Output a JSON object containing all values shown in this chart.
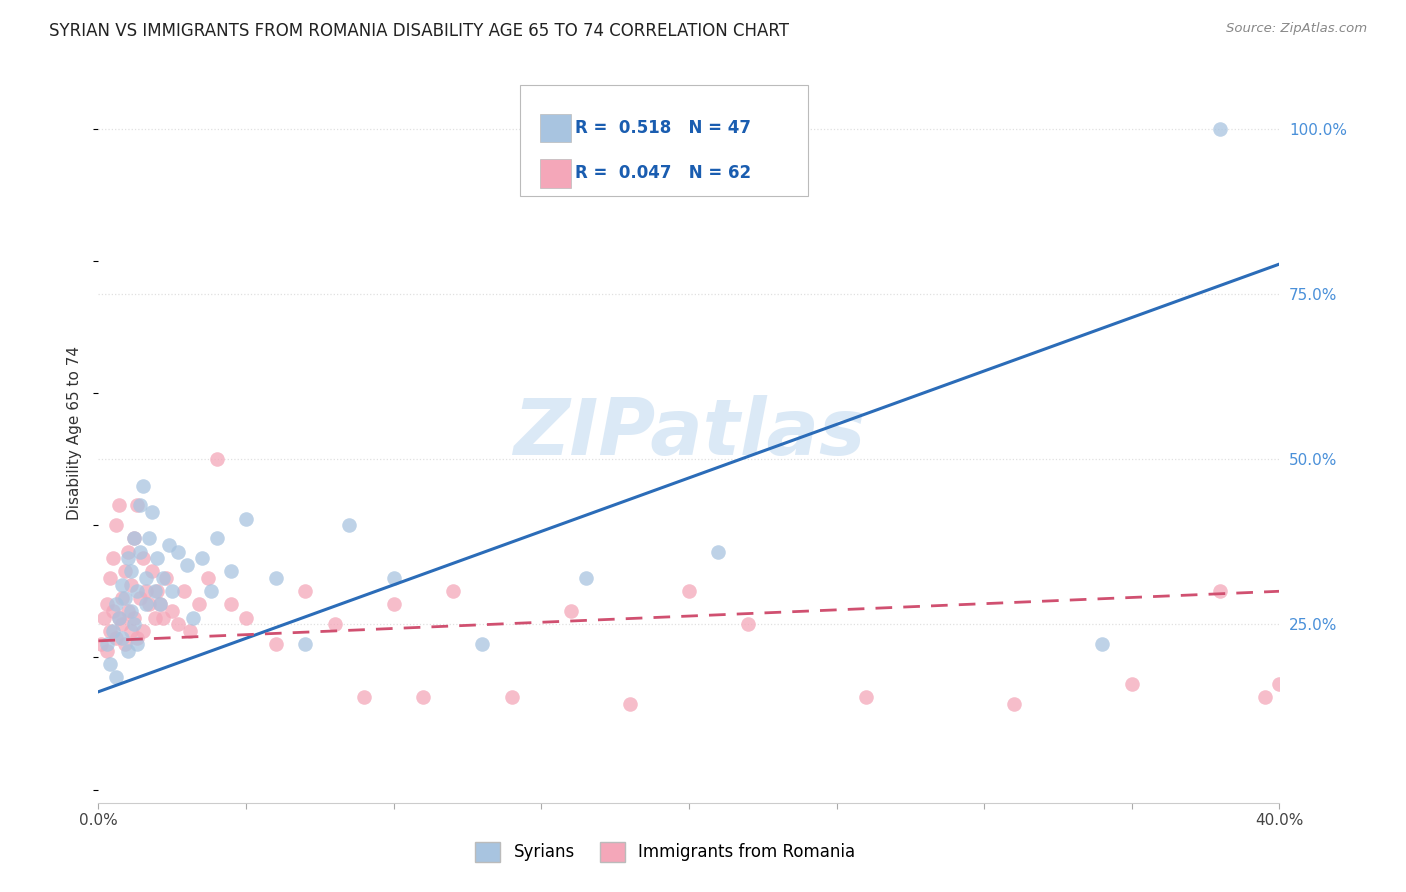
{
  "title": "SYRIAN VS IMMIGRANTS FROM ROMANIA DISABILITY AGE 65 TO 74 CORRELATION CHART",
  "source": "Source: ZipAtlas.com",
  "ylabel": "Disability Age 65 to 74",
  "xlim": [
    0.0,
    0.4
  ],
  "ylim": [
    -0.02,
    1.1
  ],
  "xticks": [
    0.0,
    0.05,
    0.1,
    0.15,
    0.2,
    0.25,
    0.3,
    0.35,
    0.4
  ],
  "xticklabels": [
    "0.0%",
    "",
    "",
    "",
    "",
    "",
    "",
    "",
    "40.0%"
  ],
  "yticks": [
    0.0,
    0.25,
    0.5,
    0.75,
    1.0
  ],
  "yticklabels": [
    "",
    "25.0%",
    "50.0%",
    "75.0%",
    "100.0%"
  ],
  "watermark": "ZIPatlas",
  "legend_r_syrian": "0.518",
  "legend_n_syrian": "47",
  "legend_r_romania": "0.047",
  "legend_n_romania": "62",
  "syrians_color": "#a8c4e0",
  "romania_color": "#f4a7b9",
  "trend_syrian_color": "#2b6cb8",
  "trend_romania_color": "#d05070",
  "background_color": "#ffffff",
  "grid_color": "#e0e0e0",
  "syrian_trend_x0": 0.0,
  "syrian_trend_y0": 0.148,
  "syrian_trend_x1": 0.4,
  "syrian_trend_y1": 0.795,
  "romania_trend_x0": 0.0,
  "romania_trend_y0": 0.225,
  "romania_trend_x1": 0.4,
  "romania_trend_y1": 0.3,
  "syrians_x": [
    0.003,
    0.004,
    0.005,
    0.006,
    0.006,
    0.007,
    0.008,
    0.008,
    0.009,
    0.01,
    0.01,
    0.011,
    0.011,
    0.012,
    0.012,
    0.013,
    0.013,
    0.014,
    0.014,
    0.015,
    0.016,
    0.016,
    0.017,
    0.018,
    0.019,
    0.02,
    0.021,
    0.022,
    0.024,
    0.025,
    0.027,
    0.03,
    0.032,
    0.035,
    0.038,
    0.04,
    0.045,
    0.05,
    0.06,
    0.07,
    0.085,
    0.1,
    0.13,
    0.165,
    0.21,
    0.34,
    0.38
  ],
  "syrians_y": [
    0.22,
    0.19,
    0.24,
    0.17,
    0.28,
    0.26,
    0.23,
    0.31,
    0.29,
    0.21,
    0.35,
    0.27,
    0.33,
    0.25,
    0.38,
    0.3,
    0.22,
    0.36,
    0.43,
    0.46,
    0.32,
    0.28,
    0.38,
    0.42,
    0.3,
    0.35,
    0.28,
    0.32,
    0.37,
    0.3,
    0.36,
    0.34,
    0.26,
    0.35,
    0.3,
    0.38,
    0.33,
    0.41,
    0.32,
    0.22,
    0.4,
    0.32,
    0.22,
    0.32,
    0.36,
    0.22,
    1.0
  ],
  "romania_x": [
    0.001,
    0.002,
    0.003,
    0.003,
    0.004,
    0.004,
    0.005,
    0.005,
    0.006,
    0.006,
    0.007,
    0.007,
    0.008,
    0.008,
    0.009,
    0.009,
    0.01,
    0.01,
    0.011,
    0.011,
    0.012,
    0.012,
    0.013,
    0.013,
    0.014,
    0.015,
    0.015,
    0.016,
    0.017,
    0.018,
    0.019,
    0.02,
    0.021,
    0.022,
    0.023,
    0.025,
    0.027,
    0.029,
    0.031,
    0.034,
    0.037,
    0.04,
    0.045,
    0.05,
    0.06,
    0.07,
    0.08,
    0.09,
    0.1,
    0.11,
    0.12,
    0.14,
    0.16,
    0.18,
    0.2,
    0.22,
    0.26,
    0.31,
    0.35,
    0.38,
    0.395,
    0.4
  ],
  "romania_y": [
    0.22,
    0.26,
    0.21,
    0.28,
    0.24,
    0.32,
    0.27,
    0.35,
    0.23,
    0.4,
    0.26,
    0.43,
    0.25,
    0.29,
    0.33,
    0.22,
    0.36,
    0.27,
    0.31,
    0.24,
    0.38,
    0.26,
    0.43,
    0.23,
    0.29,
    0.35,
    0.24,
    0.3,
    0.28,
    0.33,
    0.26,
    0.3,
    0.28,
    0.26,
    0.32,
    0.27,
    0.25,
    0.3,
    0.24,
    0.28,
    0.32,
    0.5,
    0.28,
    0.26,
    0.22,
    0.3,
    0.25,
    0.14,
    0.28,
    0.14,
    0.3,
    0.14,
    0.27,
    0.13,
    0.3,
    0.25,
    0.14,
    0.13,
    0.16,
    0.3,
    0.14,
    0.16
  ]
}
